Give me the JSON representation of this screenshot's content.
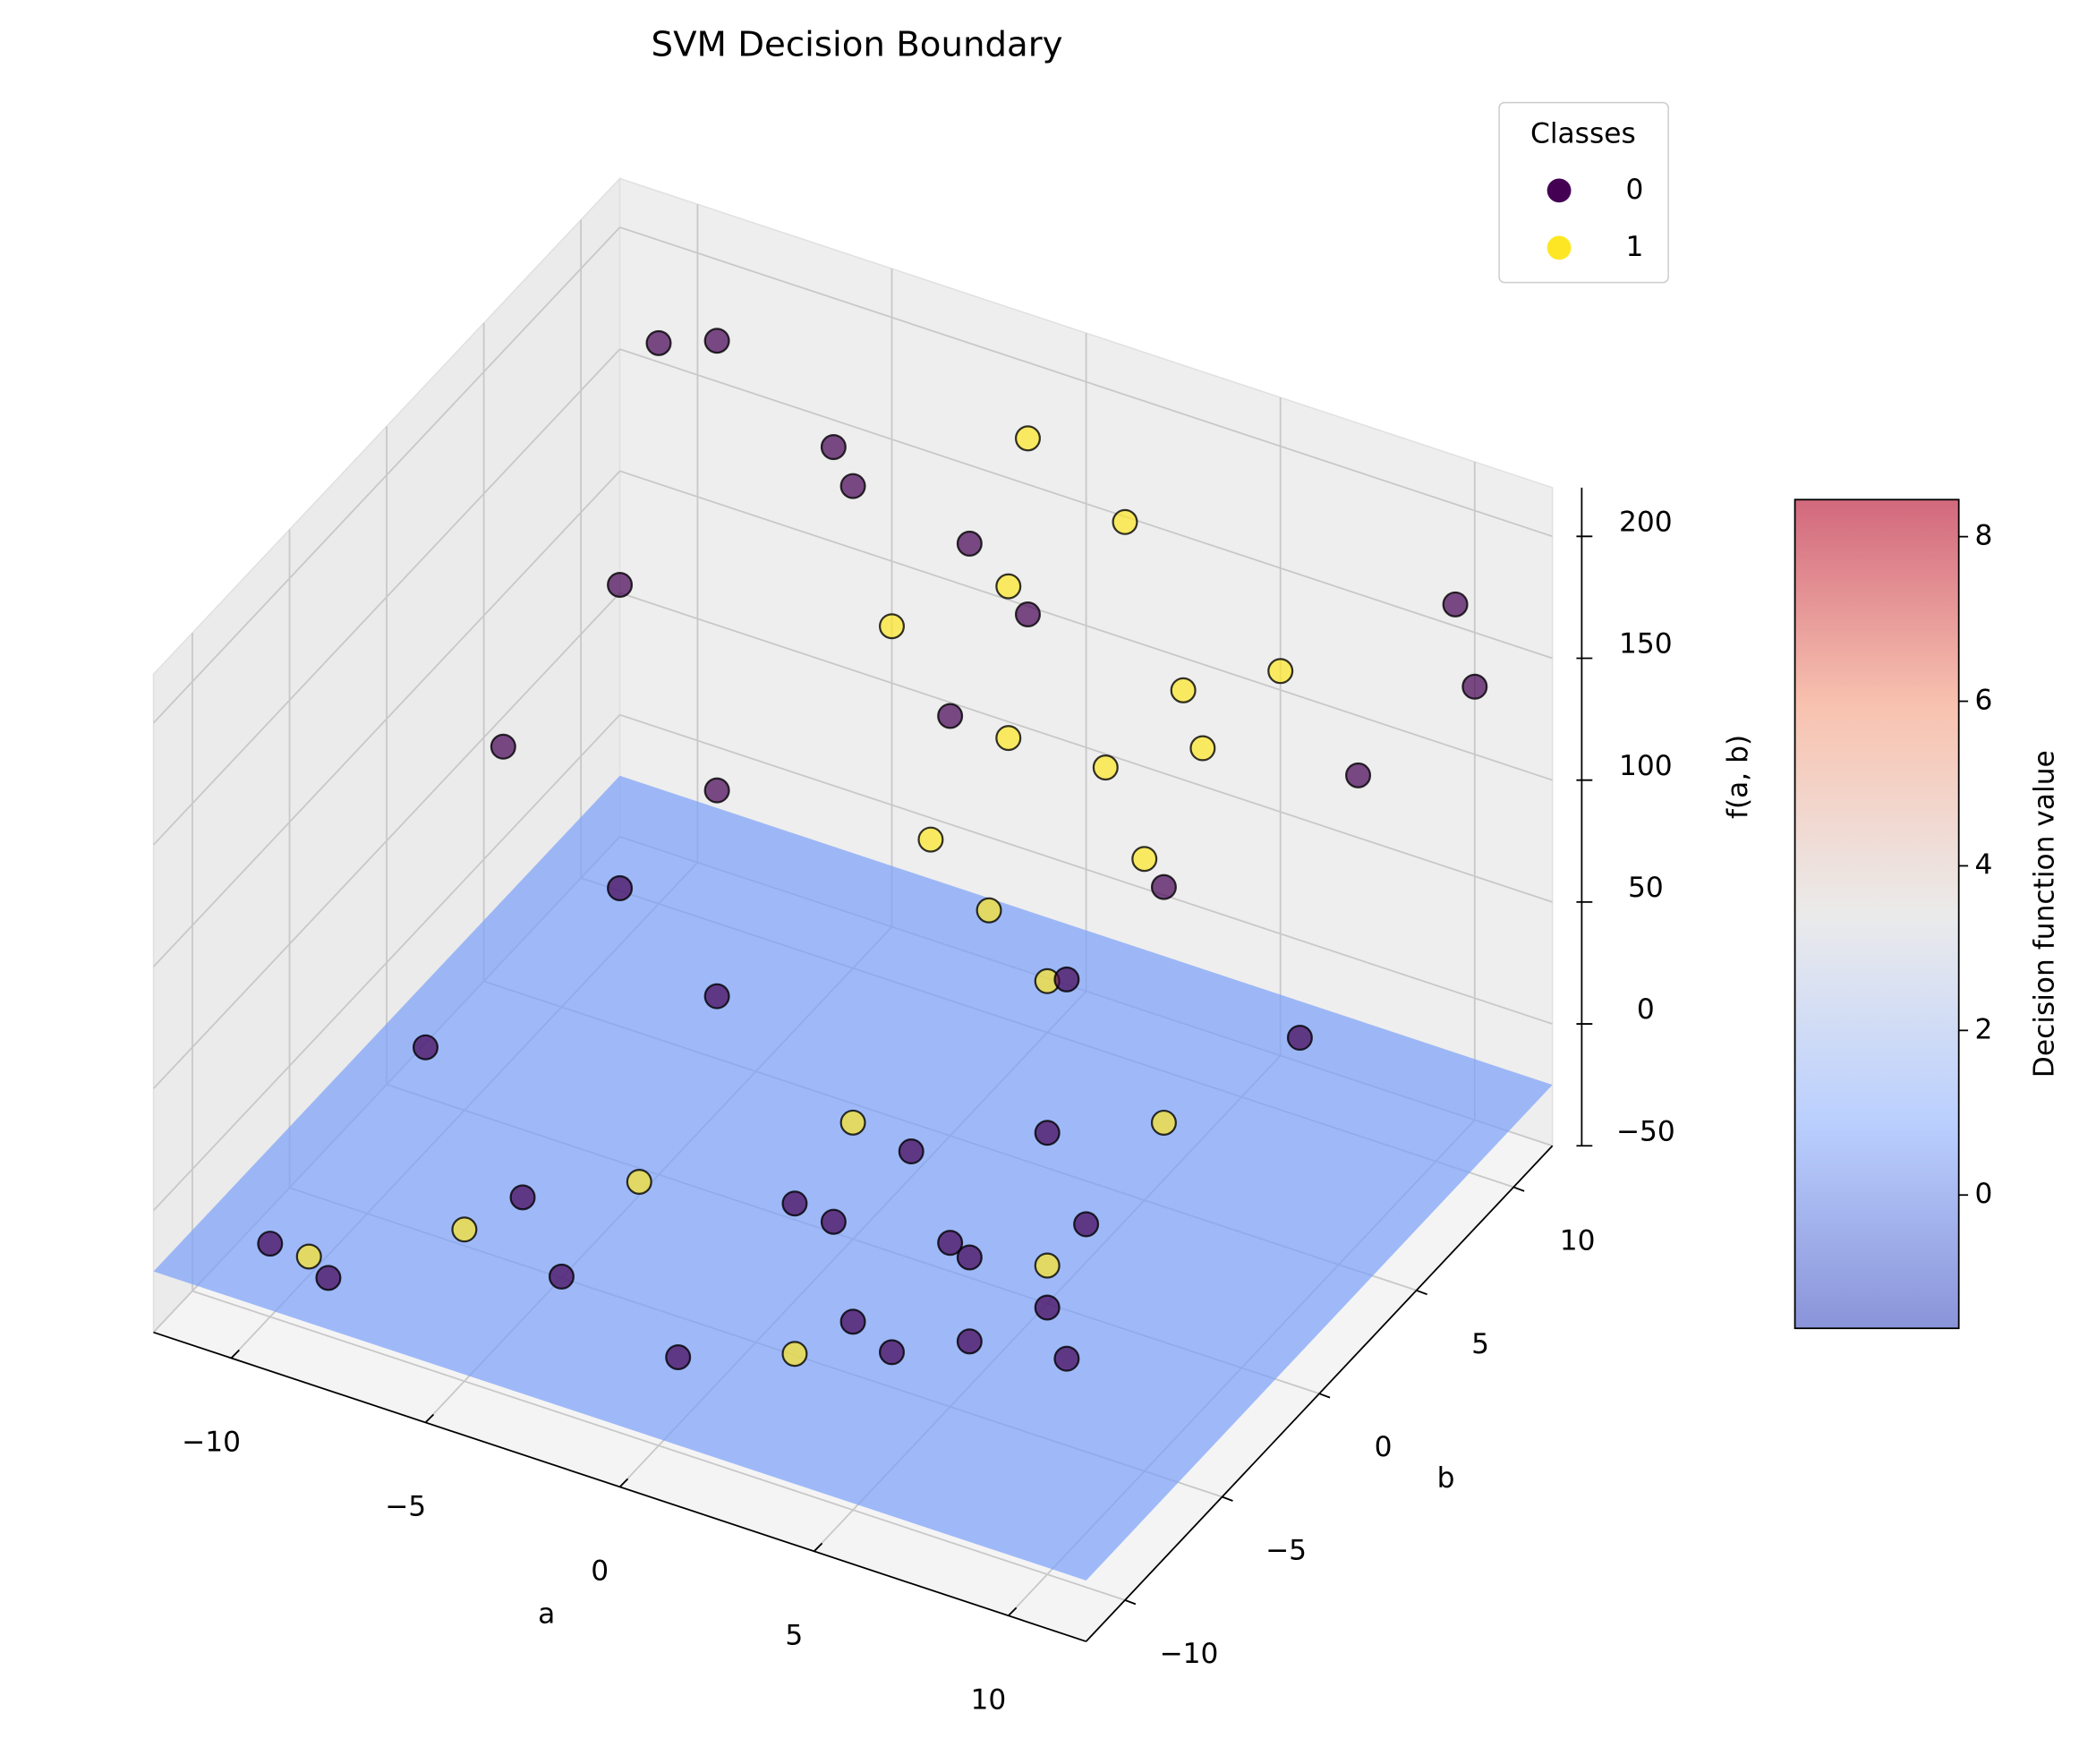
{
  "chart_data": {
    "type": "scatter3d",
    "title": "SVM Decision Boundary",
    "xlabel": "a",
    "ylabel": "b",
    "zlabel": "f(a, b)",
    "xlim": [
      -12,
      12
    ],
    "ylim": [
      -12,
      12
    ],
    "zlim": [
      -50,
      220
    ],
    "xticks": [
      {
        "value": -10,
        "label": "−10"
      },
      {
        "value": -5,
        "label": "−5"
      },
      0,
      5,
      10
    ],
    "yticks": [
      {
        "value": -10,
        "label": "−10"
      },
      {
        "value": -5,
        "label": "−5"
      },
      0,
      5,
      10
    ],
    "zticks": [
      {
        "value": -50,
        "label": "−50"
      },
      0,
      50,
      100,
      150,
      200
    ],
    "grid": true,
    "legend": "upper right",
    "legend_title": "Classes",
    "series": [
      {
        "name": "0",
        "color": "#440154",
        "x": [
          -10,
          -8,
          -6,
          -9,
          -4,
          -2,
          0,
          2,
          4,
          6,
          8,
          10,
          -10,
          -5,
          0,
          5,
          10,
          -7,
          3,
          7,
          -11,
          -3,
          1,
          9,
          -9,
          -6,
          6,
          11,
          -4,
          2,
          8,
          -1,
          5,
          -8,
          4,
          10
        ],
        "y": [
          10,
          9,
          11,
          6,
          8,
          10,
          9,
          -5,
          -8,
          -10,
          -6,
          -9,
          -10,
          -7,
          -3,
          0,
          3,
          2,
          5,
          -2,
          4,
          -9,
          -11,
          8,
          -4,
          5,
          -6,
          10,
          1,
          -1,
          -10,
          7,
          6,
          -11,
          -3,
          11
        ],
        "z": [
          180,
          200,
          150,
          120,
          170,
          140,
          130,
          10,
          5,
          20,
          15,
          30,
          -20,
          0,
          -10,
          20,
          60,
          40,
          30,
          10,
          60,
          -5,
          0,
          120,
          15,
          60,
          25,
          150,
          20,
          5,
          35,
          100,
          70,
          -15,
          -5,
          170
        ]
      },
      {
        "name": "1",
        "color": "#fde725",
        "x": [
          0,
          2,
          4,
          1,
          3,
          5,
          -1,
          2,
          6,
          0,
          4,
          -6,
          -9,
          7,
          3,
          -3,
          8,
          1,
          -2,
          5
        ],
        "y": [
          8,
          10,
          9,
          6,
          7,
          5,
          11,
          3,
          10,
          4,
          2,
          -8,
          -10,
          -4,
          -9,
          -5,
          0,
          -2,
          6,
          8
        ],
        "z": [
          150,
          170,
          120,
          110,
          100,
          90,
          180,
          70,
          130,
          80,
          60,
          -10,
          -20,
          10,
          -5,
          0,
          40,
          20,
          140,
          110
        ]
      }
    ],
    "surface": {
      "z": -25,
      "color": "#7b9ff9"
    },
    "colorbar": {
      "label": "Decision function value",
      "colormap": "coolwarm",
      "lim": [
        -1.62,
        8.45
      ],
      "ticks": [
        0,
        2,
        4,
        6,
        8
      ]
    }
  }
}
